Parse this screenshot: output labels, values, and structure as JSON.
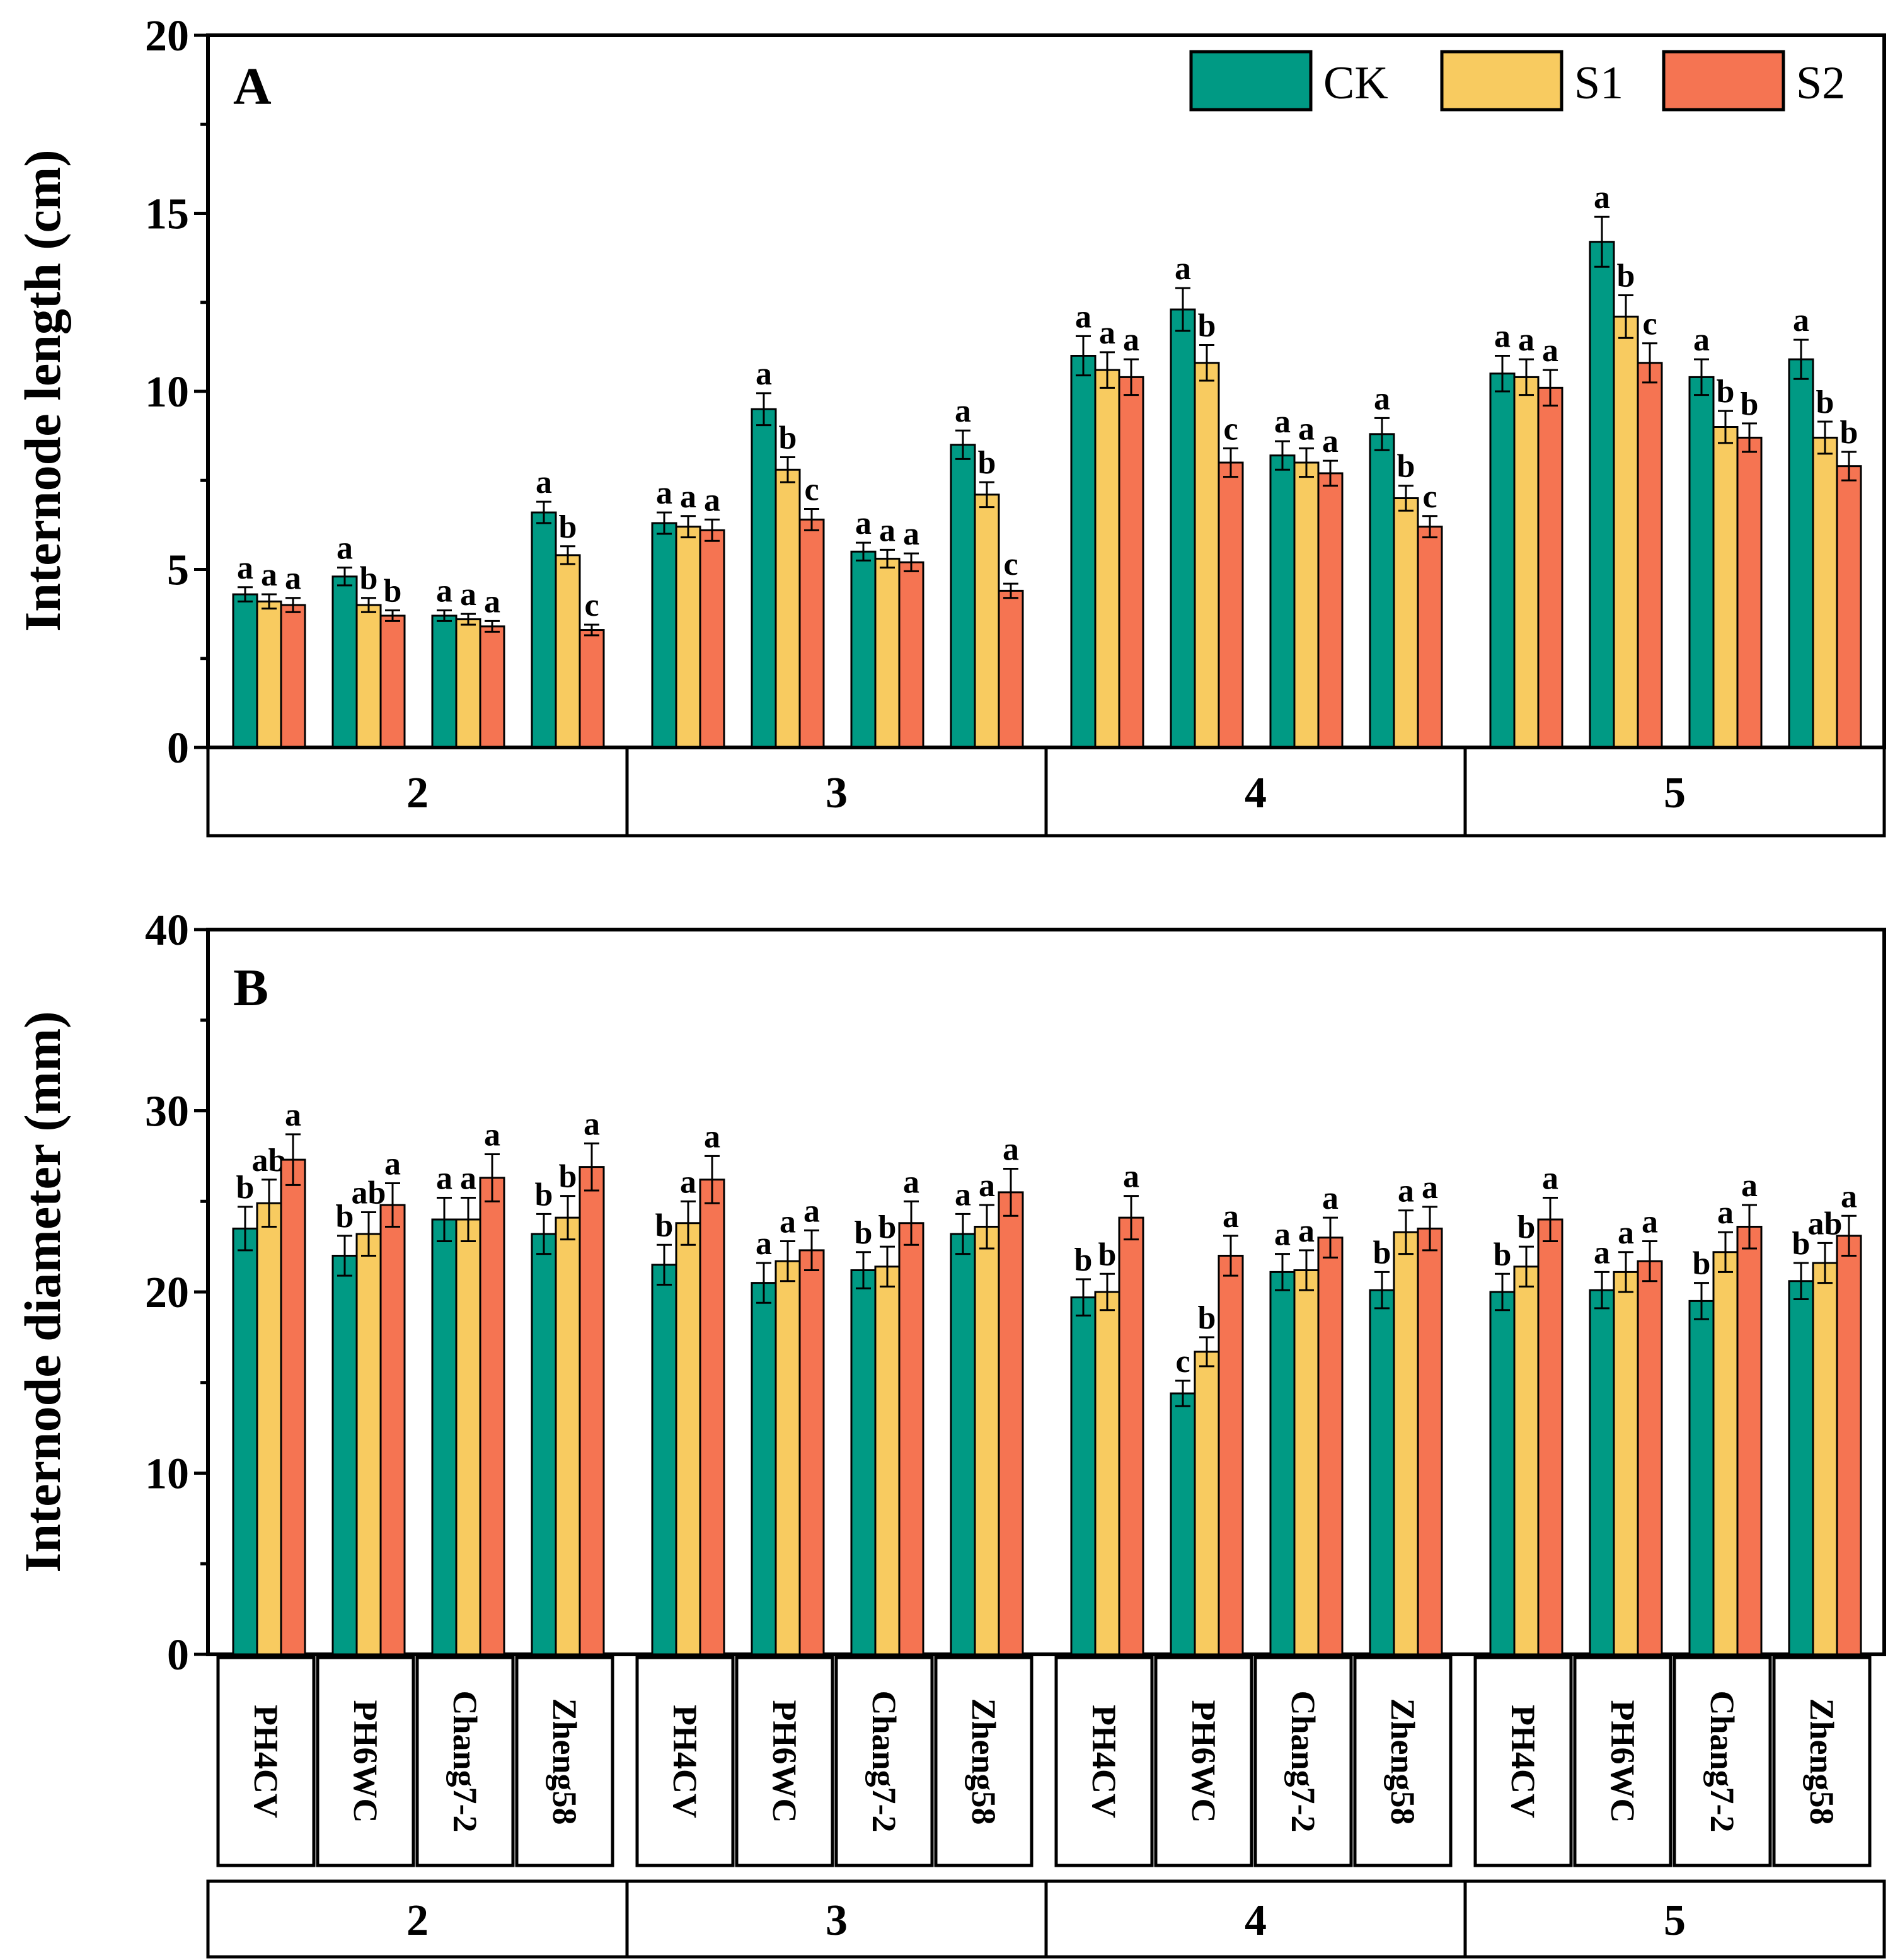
{
  "colors": {
    "CK": "#009a84",
    "S1": "#f8cb60",
    "S2": "#f57452"
  },
  "chart_data": [
    {
      "type": "bar",
      "panel": "A",
      "ylabel": "Internode length (cm)",
      "ylim": [
        0,
        20
      ],
      "yticks": [
        0,
        5,
        10,
        15,
        20
      ],
      "legend": [
        "CK",
        "S1",
        "S2"
      ],
      "groups": [
        "2",
        "3",
        "4",
        "5"
      ],
      "cultivars": [
        "PH4CV",
        "PH6WC",
        "Chang7-2",
        "Zheng58"
      ],
      "series": [
        {
          "name": "CK",
          "values": [
            4.3,
            4.8,
            3.7,
            6.6,
            6.3,
            9.5,
            5.5,
            8.5,
            11.0,
            12.3,
            8.2,
            8.8,
            10.5,
            14.2,
            10.4,
            10.9
          ],
          "errors": [
            0.2,
            0.25,
            0.15,
            0.3,
            0.3,
            0.45,
            0.25,
            0.4,
            0.55,
            0.6,
            0.4,
            0.45,
            0.5,
            0.7,
            0.5,
            0.55
          ],
          "letters": [
            "a",
            "a",
            "a",
            "a",
            "a",
            "a",
            "a",
            "a",
            "a",
            "a",
            "a",
            "a",
            "a",
            "a",
            "a",
            "a"
          ]
        },
        {
          "name": "S1",
          "values": [
            4.1,
            4.0,
            3.6,
            5.4,
            6.2,
            7.8,
            5.3,
            7.1,
            10.6,
            10.8,
            8.0,
            7.0,
            10.4,
            12.1,
            9.0,
            8.7
          ],
          "errors": [
            0.2,
            0.2,
            0.15,
            0.25,
            0.3,
            0.35,
            0.25,
            0.35,
            0.5,
            0.5,
            0.4,
            0.35,
            0.5,
            0.6,
            0.45,
            0.45
          ],
          "letters": [
            "a",
            "b",
            "a",
            "b",
            "a",
            "b",
            "a",
            "b",
            "a",
            "b",
            "a",
            "b",
            "a",
            "b",
            "b",
            "b"
          ]
        },
        {
          "name": "S2",
          "values": [
            4.0,
            3.7,
            3.4,
            3.3,
            6.1,
            6.4,
            5.2,
            4.4,
            10.4,
            8.0,
            7.7,
            6.2,
            10.1,
            10.8,
            8.7,
            7.9
          ],
          "errors": [
            0.2,
            0.15,
            0.15,
            0.15,
            0.3,
            0.3,
            0.25,
            0.2,
            0.5,
            0.4,
            0.35,
            0.3,
            0.5,
            0.55,
            0.4,
            0.4
          ],
          "letters": [
            "a",
            "b",
            "a",
            "c",
            "a",
            "c",
            "a",
            "c",
            "a",
            "c",
            "a",
            "c",
            "a",
            "c",
            "b",
            "b"
          ]
        }
      ]
    },
    {
      "type": "bar",
      "panel": "B",
      "ylabel": "Internode diameter (mm)",
      "ylim": [
        0,
        40
      ],
      "yticks": [
        0,
        10,
        20,
        30,
        40
      ],
      "groups": [
        "2",
        "3",
        "4",
        "5"
      ],
      "cultivars": [
        "PH4CV",
        "PH6WC",
        "Chang7-2",
        "Zheng58"
      ],
      "series": [
        {
          "name": "CK",
          "values": [
            23.5,
            22.0,
            24.0,
            23.2,
            21.5,
            20.5,
            21.2,
            23.2,
            19.7,
            14.4,
            21.1,
            20.1,
            20.0,
            20.1,
            19.5,
            20.6
          ],
          "errors": [
            1.2,
            1.1,
            1.2,
            1.1,
            1.1,
            1.1,
            1.0,
            1.1,
            1.0,
            0.7,
            1.0,
            1.0,
            1.0,
            1.0,
            1.0,
            1.0
          ],
          "letters": [
            "b",
            "b",
            "a",
            "b",
            "b",
            "a",
            "b",
            "a",
            "b",
            "c",
            "a",
            "b",
            "b",
            "a",
            "b",
            "b"
          ]
        },
        {
          "name": "S1",
          "values": [
            24.9,
            23.2,
            24.0,
            24.1,
            23.8,
            21.7,
            21.4,
            23.6,
            20.0,
            16.7,
            21.2,
            23.3,
            21.4,
            21.1,
            22.2,
            21.6
          ],
          "errors": [
            1.3,
            1.2,
            1.2,
            1.2,
            1.2,
            1.1,
            1.1,
            1.2,
            1.0,
            0.8,
            1.1,
            1.2,
            1.1,
            1.1,
            1.1,
            1.1
          ],
          "letters": [
            "ab",
            "ab",
            "a",
            "b",
            "a",
            "a",
            "b",
            "a",
            "b",
            "b",
            "a",
            "a",
            "b",
            "a",
            "a",
            "ab"
          ]
        },
        {
          "name": "S2",
          "values": [
            27.3,
            24.8,
            26.3,
            26.9,
            26.2,
            22.3,
            23.8,
            25.5,
            24.1,
            22.0,
            23.0,
            23.5,
            24.0,
            21.7,
            23.6,
            23.1
          ],
          "errors": [
            1.4,
            1.2,
            1.3,
            1.3,
            1.3,
            1.1,
            1.2,
            1.3,
            1.2,
            1.1,
            1.1,
            1.2,
            1.2,
            1.1,
            1.2,
            1.1
          ],
          "letters": [
            "a",
            "a",
            "a",
            "a",
            "a",
            "a",
            "a",
            "a",
            "a",
            "a",
            "a",
            "a",
            "a",
            "a",
            "a",
            "a"
          ]
        }
      ]
    }
  ]
}
